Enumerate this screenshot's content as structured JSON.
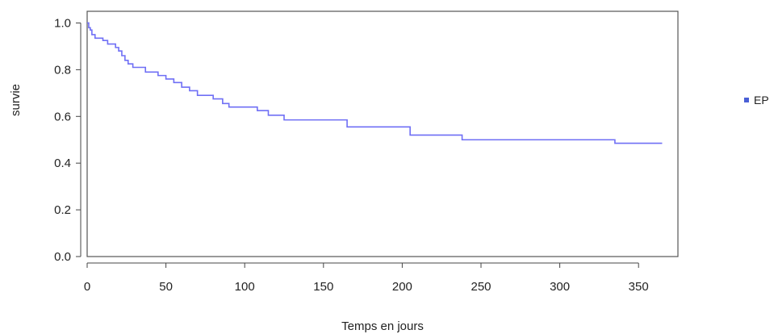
{
  "chart_data": {
    "type": "line",
    "title": "",
    "xlabel": "Temps en jours",
    "ylabel": "survie",
    "xlim": [
      0,
      375
    ],
    "ylim": [
      0,
      1.05
    ],
    "xticks": [
      0,
      50,
      100,
      150,
      200,
      250,
      300,
      350
    ],
    "yticks": [
      0.0,
      0.2,
      0.4,
      0.6,
      0.8,
      1.0
    ],
    "xtick_labels": [
      "0",
      "50",
      "100",
      "150",
      "200",
      "250",
      "300",
      "350"
    ],
    "ytick_labels": [
      "0.0",
      "0.2",
      "0.4",
      "0.6",
      "0.8",
      "1.0"
    ],
    "grid": false,
    "legend_position": "right",
    "step": true,
    "series": [
      {
        "name": "EP",
        "color": "#6f6ff5",
        "x": [
          0,
          1,
          2,
          3,
          5,
          10,
          13,
          18,
          20,
          22,
          24,
          26,
          29,
          37,
          45,
          50,
          55,
          60,
          65,
          70,
          80,
          86,
          90,
          108,
          115,
          125,
          165,
          205,
          238,
          335,
          365
        ],
        "y": [
          1.0,
          0.98,
          0.97,
          0.95,
          0.935,
          0.925,
          0.91,
          0.895,
          0.88,
          0.86,
          0.84,
          0.825,
          0.81,
          0.79,
          0.775,
          0.76,
          0.745,
          0.725,
          0.71,
          0.69,
          0.675,
          0.655,
          0.64,
          0.625,
          0.605,
          0.585,
          0.555,
          0.52,
          0.5,
          0.485,
          0.485
        ]
      }
    ]
  }
}
